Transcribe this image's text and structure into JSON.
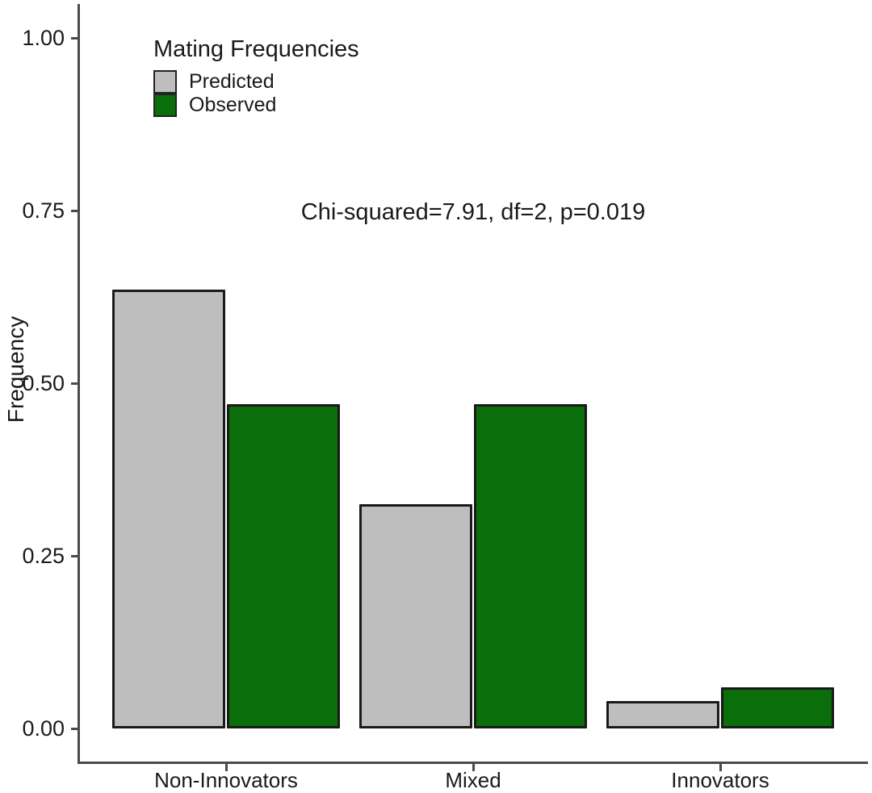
{
  "chart_data": {
    "type": "bar",
    "title": "",
    "ylabel": "Frequency",
    "xlabel": "",
    "categories": [
      "Non-Innovators",
      "Mixed",
      "Innovators"
    ],
    "series": [
      {
        "name": "Predicted",
        "color": "#bebebe",
        "values": [
          0.635,
          0.325,
          0.04
        ]
      },
      {
        "name": "Observed",
        "color": "#0a6e0a",
        "values": [
          0.47,
          0.47,
          0.06
        ]
      }
    ],
    "ylim": [
      0,
      1.0
    ],
    "yticks": [
      0,
      0.25,
      0.5,
      0.75,
      1.0
    ],
    "ytick_labels": [
      "0.00",
      "0.25",
      "0.50",
      "0.75",
      "1.00"
    ],
    "legend": {
      "title": "Mating Frequencies",
      "position": "top-left",
      "entries": [
        {
          "label": "Predicted",
          "color": "#bebebe"
        },
        {
          "label": "Observed",
          "color": "#0a6e0a"
        }
      ]
    },
    "annotation": "Chi-squared=7.91, df=2, p=0.019",
    "grid": false,
    "bar_border_color": "#1a1a1a",
    "axis_color": "#4a4a4a",
    "text_color": "#1a1a1a"
  }
}
